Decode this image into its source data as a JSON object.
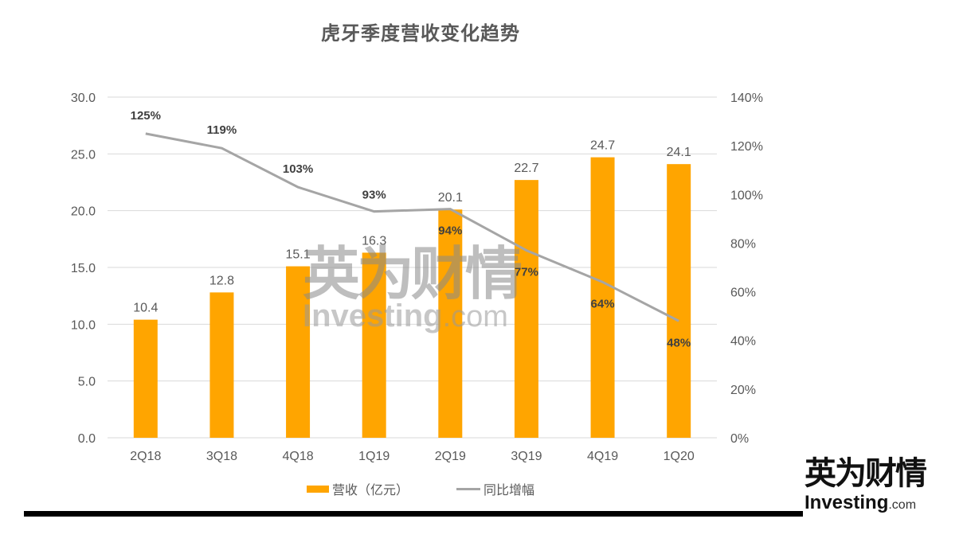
{
  "title": "虎牙季度营收变化趋势",
  "legend": {
    "bar_label": "营收（亿元）",
    "line_label": "同比增幅"
  },
  "watermark": {
    "cn": "英为财情",
    "en_main": "Investing",
    "en_suffix": ".com"
  },
  "logo": {
    "cn": "英为财情",
    "en_main": "Investing",
    "en_suffix": ".com"
  },
  "colors": {
    "bar": "#FFA500",
    "line": "#A5A5A5",
    "grid": "#D9D9D9",
    "axis_text": "#595959",
    "line_label": "#404040"
  },
  "chart_data": {
    "type": "bar+line",
    "title": "虎牙季度营收变化趋势",
    "categories": [
      "2Q18",
      "3Q18",
      "4Q18",
      "1Q19",
      "2Q19",
      "3Q19",
      "4Q19",
      "1Q20"
    ],
    "series": [
      {
        "name": "营收（亿元）",
        "type": "bar",
        "axis": "left",
        "values": [
          10.4,
          12.8,
          15.1,
          16.3,
          20.1,
          22.7,
          24.7,
          24.1
        ],
        "labels": [
          "10.4",
          "12.8",
          "15.1",
          "16.3",
          "20.1",
          "22.7",
          "24.7",
          "24.1"
        ]
      },
      {
        "name": "同比增幅",
        "type": "line",
        "axis": "right",
        "values": [
          125,
          119,
          103,
          93,
          94,
          77,
          64,
          48
        ],
        "labels": [
          "125%",
          "119%",
          "103%",
          "93%",
          "94%",
          "77%",
          "64%",
          "48%"
        ]
      }
    ],
    "left_axis": {
      "min": 0,
      "max": 30,
      "step": 5,
      "ticks": [
        "0.0",
        "5.0",
        "10.0",
        "15.0",
        "20.0",
        "25.0",
        "30.0"
      ]
    },
    "right_axis": {
      "min": 0,
      "max": 140,
      "step": 20,
      "ticks": [
        "0%",
        "20%",
        "40%",
        "60%",
        "80%",
        "100%",
        "120%",
        "140%"
      ]
    },
    "grid": true,
    "legend_position": "bottom"
  }
}
